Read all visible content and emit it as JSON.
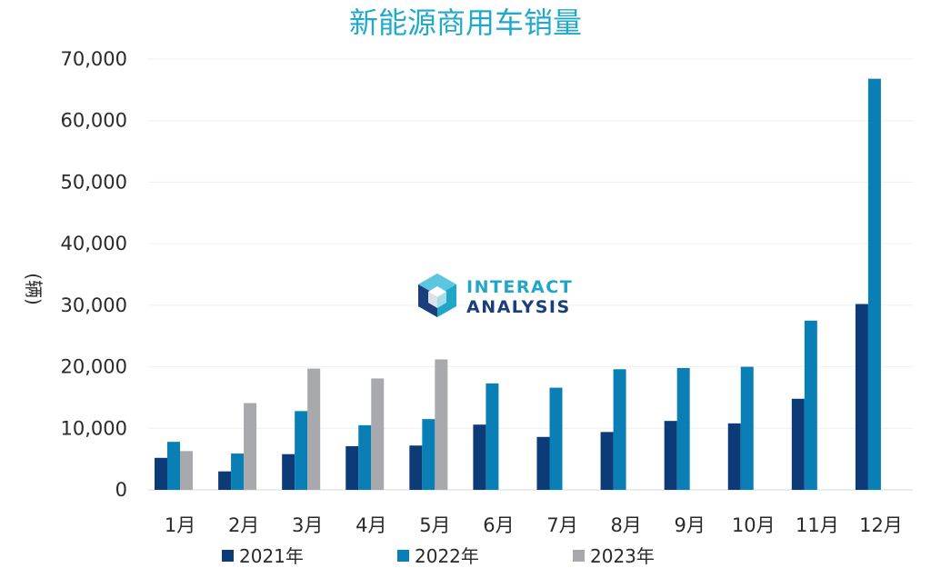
{
  "chart_data": {
    "type": "bar",
    "title": "新能源商用车销量",
    "ylabel": "(辆)",
    "xlabel": "",
    "ylim": [
      0,
      70000
    ],
    "yticks": [
      "0",
      "10,000",
      "20,000",
      "30,000",
      "40,000",
      "50,000",
      "60,000",
      "70,000"
    ],
    "ytick_values": [
      0,
      10000,
      20000,
      30000,
      40000,
      50000,
      60000,
      70000
    ],
    "grid": true,
    "legend_position": "bottom",
    "categories": [
      "1月",
      "2月",
      "3月",
      "4月",
      "5月",
      "6月",
      "7月",
      "8月",
      "9月",
      "10月",
      "11月",
      "12月"
    ],
    "series": [
      {
        "name": "2021年",
        "color": "#0d3b78",
        "values": [
          5200,
          3000,
          5800,
          7100,
          7200,
          10600,
          8600,
          9400,
          11200,
          10800,
          14800,
          30200
        ]
      },
      {
        "name": "2022年",
        "color": "#0a7fb5",
        "values": [
          7800,
          5900,
          12800,
          10500,
          11500,
          17300,
          16600,
          19600,
          19800,
          20000,
          27500,
          66800
        ]
      },
      {
        "name": "2023年",
        "color": "#a7a9ac",
        "values": [
          6300,
          14100,
          19700,
          18100,
          21200,
          null,
          null,
          null,
          null,
          null,
          null,
          null
        ]
      }
    ]
  },
  "watermark": {
    "line1": "INTERACT",
    "line2": "ANALYSIS",
    "color_light": "#22a6c8",
    "color_dark": "#1a3f7a"
  }
}
